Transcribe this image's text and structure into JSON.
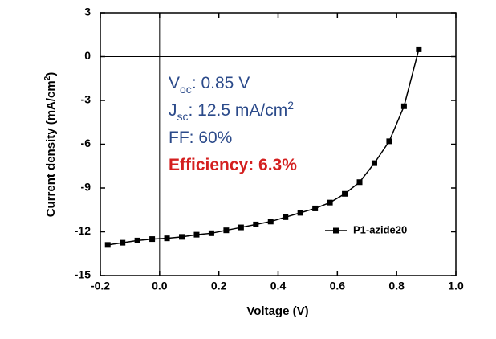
{
  "chart_data": {
    "type": "line",
    "xlabel": "Voltage (V)",
    "ylabel_parts": [
      "Current density (mA/cm",
      "2",
      ")"
    ],
    "xlim": [
      -0.2,
      1.0
    ],
    "xticks": [
      -0.2,
      {
        "value": 0,
        "label": "0.0"
      },
      0.2,
      0.4,
      0.6,
      0.8,
      {
        "value": 1,
        "label": "1.0"
      }
    ],
    "ylim": [
      -15,
      3
    ],
    "yticks": [
      -15,
      -12,
      -9,
      -6,
      -3,
      0,
      3
    ],
    "hline": 0,
    "vline": 0,
    "legend": "lower right",
    "series": [
      {
        "name": "P1-azide20",
        "color": "#000000",
        "x": [
          -0.175,
          -0.125,
          -0.075,
          -0.025,
          0.025,
          0.075,
          0.125,
          0.175,
          0.225,
          0.275,
          0.325,
          0.375,
          0.425,
          0.475,
          0.525,
          0.575,
          0.625,
          0.675,
          0.725,
          0.775,
          0.825,
          0.875
        ],
        "values": [
          -12.9,
          -12.75,
          -12.6,
          -12.5,
          -12.45,
          -12.35,
          -12.2,
          -12.1,
          -11.9,
          -11.7,
          -11.5,
          -11.3,
          -11.0,
          -10.7,
          -10.4,
          -10.0,
          -9.4,
          -8.6,
          -7.3,
          -5.8,
          -3.4,
          0.5
        ]
      }
    ],
    "annotations": [
      {
        "color": "#2b4a8a",
        "parts": [
          {
            "text": "V"
          },
          {
            "text": "oc",
            "sub": true
          },
          {
            "text": ": 0.85 V"
          }
        ]
      },
      {
        "color": "#2b4a8a",
        "parts": [
          {
            "text": "J"
          },
          {
            "text": "sc",
            "sub": true
          },
          {
            "text": ": 12.5 mA/cm"
          },
          {
            "text": "2",
            "sup": true
          }
        ]
      },
      {
        "color": "#2b4a8a",
        "parts": [
          {
            "text": "FF: 60%"
          }
        ]
      },
      {
        "color": "#d42020",
        "parts": [
          {
            "text": "Efficiency: 6.3%"
          }
        ]
      }
    ]
  }
}
